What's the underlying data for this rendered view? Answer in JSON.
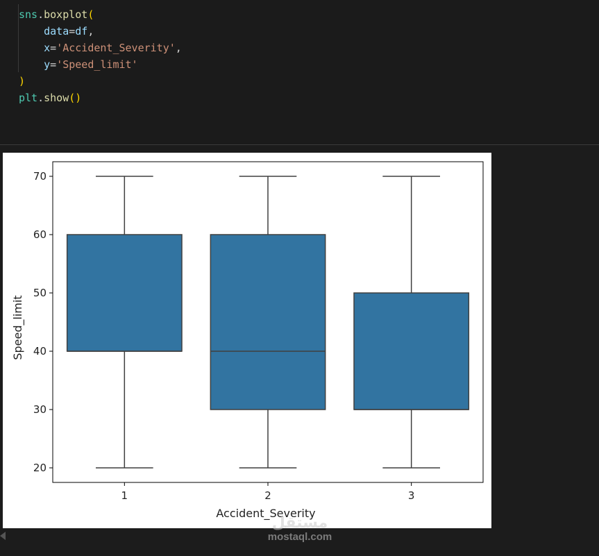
{
  "code": {
    "lines": [
      [
        {
          "t": "sns",
          "c": "var"
        },
        {
          "t": ".",
          "c": "op"
        },
        {
          "t": "boxplot",
          "c": "fn"
        },
        {
          "t": "(",
          "c": "paren"
        }
      ],
      [
        {
          "t": "    ",
          "c": "op"
        },
        {
          "t": "data",
          "c": "param"
        },
        {
          "t": "=",
          "c": "op"
        },
        {
          "t": "df",
          "c": "param"
        },
        {
          "t": ",",
          "c": "op"
        }
      ],
      [
        {
          "t": "    ",
          "c": "op"
        },
        {
          "t": "x",
          "c": "param"
        },
        {
          "t": "=",
          "c": "op"
        },
        {
          "t": "'Accident_Severity'",
          "c": "str"
        },
        {
          "t": ",",
          "c": "op"
        }
      ],
      [
        {
          "t": "    ",
          "c": "op"
        },
        {
          "t": "y",
          "c": "param"
        },
        {
          "t": "=",
          "c": "op"
        },
        {
          "t": "'Speed_limit'",
          "c": "str"
        }
      ],
      [
        {
          "t": ")",
          "c": "paren"
        }
      ],
      [
        {
          "t": "plt",
          "c": "var"
        },
        {
          "t": ".",
          "c": "op"
        },
        {
          "t": "show",
          "c": "fn"
        },
        {
          "t": "()",
          "c": "paren"
        }
      ]
    ]
  },
  "chart_data": {
    "type": "box",
    "xlabel": "Accident_Severity",
    "ylabel": "Speed_limit",
    "categories": [
      "1",
      "2",
      "3"
    ],
    "boxes": [
      {
        "category": "1",
        "whisker_low": 20,
        "q1": 40,
        "median": 40,
        "q3": 60,
        "whisker_high": 70
      },
      {
        "category": "2",
        "whisker_low": 20,
        "q1": 30,
        "median": 40,
        "q3": 60,
        "whisker_high": 70
      },
      {
        "category": "3",
        "whisker_low": 20,
        "q1": 30,
        "median": 30,
        "q3": 50,
        "whisker_high": 70
      }
    ],
    "yticks": [
      20,
      30,
      40,
      50,
      60,
      70
    ],
    "ylim": [
      17.5,
      72.5
    ],
    "box_color": "#3274a1",
    "grid": false
  },
  "watermark": {
    "logo": "مستقل",
    "text": "mostaql.com"
  }
}
